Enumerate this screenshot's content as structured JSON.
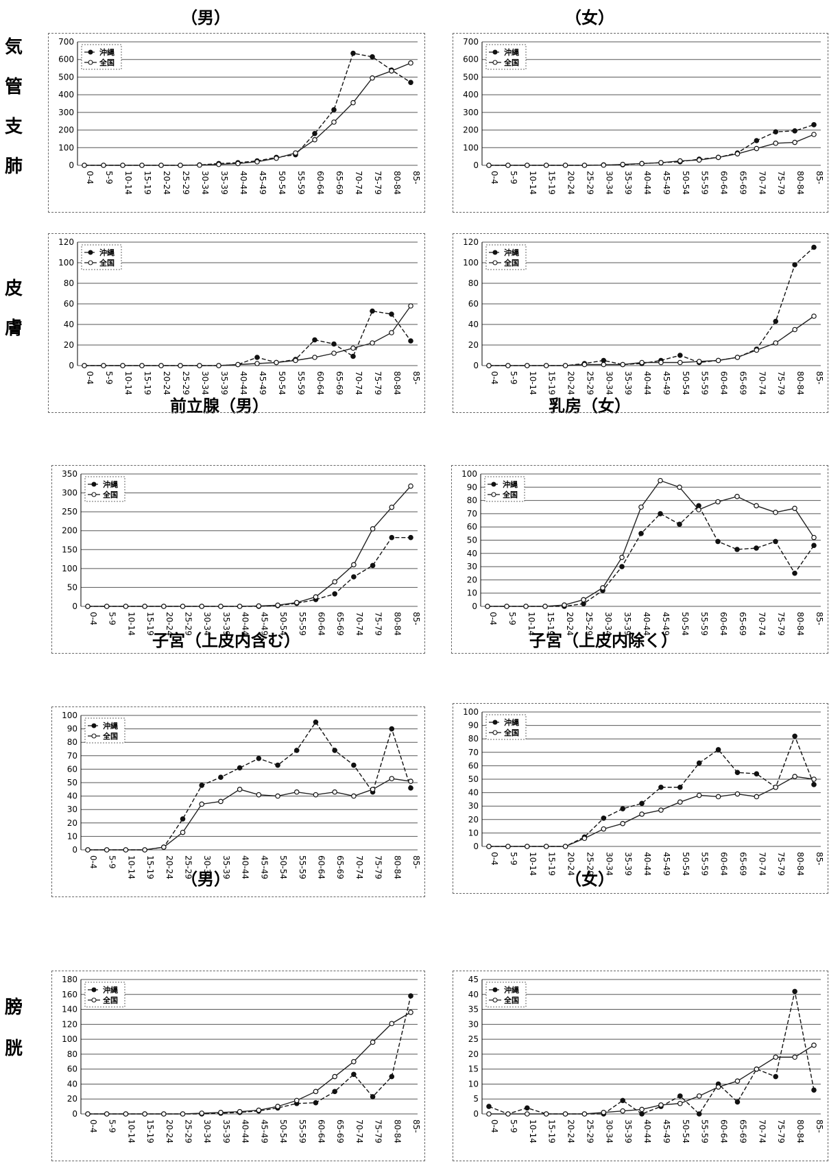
{
  "sections": {
    "row1": {
      "left_title": "（男）",
      "right_title": "（女）",
      "site_label": [
        "気",
        "管",
        "支",
        "肺"
      ]
    },
    "row2": {
      "site_label": [
        "皮",
        "膚"
      ]
    },
    "row3": {
      "left_title": "前立腺（男）",
      "right_title": "乳房（女）"
    },
    "row4": {
      "left_title": "子宮（上皮内含む）",
      "right_title": "子宮（上皮内除く）"
    },
    "row5": {
      "left_title": "（男）",
      "right_title": "（女）",
      "site_label": [
        "膀",
        "胱"
      ]
    }
  },
  "legend": {
    "okinawa": "沖縄",
    "national": "全国"
  },
  "colors": {
    "okinawa": "#111111",
    "national": "#222222",
    "grid": "#555555"
  },
  "chart_data": [
    {
      "id": "lung_male",
      "type": "line",
      "categories": [
        "0-4",
        "5-9",
        "10-14",
        "15-19",
        "20-24",
        "25-29",
        "30-34",
        "35-39",
        "40-44",
        "45-49",
        "50-54",
        "55-59",
        "60-64",
        "65-69",
        "70-74",
        "75-79",
        "80-84",
        "85-"
      ],
      "ylim": [
        0,
        700
      ],
      "yticks": [
        0,
        100,
        200,
        300,
        400,
        500,
        600,
        700
      ],
      "series": [
        {
          "name": "沖縄",
          "values": [
            0,
            0,
            0,
            0,
            0,
            0,
            2,
            10,
            15,
            25,
            45,
            60,
            180,
            315,
            635,
            615,
            540,
            470
          ]
        },
        {
          "name": "全国",
          "values": [
            0,
            0,
            0,
            0,
            0,
            0,
            1,
            5,
            10,
            20,
            40,
            70,
            145,
            245,
            355,
            495,
            535,
            580
          ]
        }
      ]
    },
    {
      "id": "lung_female",
      "type": "line",
      "categories": [
        "0-4",
        "5-9",
        "10-14",
        "15-19",
        "20-24",
        "25-29",
        "30-34",
        "35-39",
        "40-44",
        "45-49",
        "50-54",
        "55-59",
        "60-64",
        "65-69",
        "70-74",
        "75-79",
        "80-84",
        "85-"
      ],
      "ylim": [
        0,
        700
      ],
      "yticks": [
        0,
        100,
        200,
        300,
        400,
        500,
        600,
        700
      ],
      "series": [
        {
          "name": "沖縄",
          "values": [
            0,
            0,
            0,
            0,
            0,
            0,
            2,
            3,
            10,
            15,
            20,
            35,
            45,
            70,
            140,
            190,
            195,
            230
          ]
        },
        {
          "name": "全国",
          "values": [
            0,
            0,
            0,
            0,
            0,
            0,
            1,
            5,
            10,
            15,
            25,
            30,
            45,
            65,
            95,
            125,
            130,
            175
          ]
        }
      ]
    },
    {
      "id": "skin_male",
      "type": "line",
      "categories": [
        "0-4",
        "5-9",
        "10-14",
        "15-19",
        "20-24",
        "25-29",
        "30-34",
        "35-39",
        "40-44",
        "45-49",
        "50-54",
        "55-59",
        "60-64",
        "65-69",
        "70-74",
        "75-79",
        "80-84",
        "85-"
      ],
      "ylim": [
        0,
        120
      ],
      "yticks": [
        0,
        20,
        40,
        60,
        80,
        100,
        120
      ],
      "series": [
        {
          "name": "沖縄",
          "values": [
            0,
            0,
            0,
            0,
            0,
            0,
            0,
            0,
            1,
            8,
            3,
            6,
            25,
            21,
            9,
            53,
            50,
            24
          ]
        },
        {
          "name": "全国",
          "values": [
            0,
            0,
            0,
            0,
            0,
            0,
            0,
            0,
            1,
            2,
            3,
            5,
            8,
            12,
            17,
            22,
            32,
            58
          ]
        }
      ]
    },
    {
      "id": "skin_female",
      "type": "line",
      "categories": [
        "0-4",
        "5-9",
        "10-14",
        "15-19",
        "20-24",
        "25-29",
        "30-34",
        "35-39",
        "40-44",
        "45-49",
        "50-54",
        "55-59",
        "60-64",
        "65-69",
        "70-74",
        "75-79",
        "80-84",
        "85-"
      ],
      "ylim": [
        0,
        120
      ],
      "yticks": [
        0,
        20,
        40,
        60,
        80,
        100,
        120
      ],
      "series": [
        {
          "name": "沖縄",
          "values": [
            0,
            0,
            0,
            0,
            0,
            2,
            5,
            1,
            2,
            5,
            10,
            3,
            5,
            8,
            16,
            43,
            98,
            115
          ]
        },
        {
          "name": "全国",
          "values": [
            0,
            0,
            0,
            0,
            0,
            1,
            1,
            1,
            3,
            3,
            3,
            4,
            5,
            8,
            15,
            22,
            35,
            48
          ]
        }
      ]
    },
    {
      "id": "prostate",
      "type": "line",
      "categories": [
        "0-4",
        "5-9",
        "10-14",
        "15-19",
        "20-24",
        "25-29",
        "30-34",
        "35-39",
        "40-44",
        "45-49",
        "50-54",
        "55-59",
        "60-64",
        "65-69",
        "70-74",
        "75-79",
        "80-84",
        "85-"
      ],
      "ylim": [
        0,
        350
      ],
      "yticks": [
        0,
        50,
        100,
        150,
        200,
        250,
        300,
        350
      ],
      "series": [
        {
          "name": "沖縄",
          "values": [
            0,
            0,
            0,
            0,
            0,
            0,
            0,
            0,
            0,
            0,
            2,
            8,
            18,
            33,
            78,
            108,
            182,
            182
          ]
        },
        {
          "name": "全国",
          "values": [
            0,
            0,
            0,
            0,
            0,
            0,
            0,
            0,
            0,
            1,
            3,
            10,
            25,
            65,
            110,
            205,
            262,
            318
          ]
        }
      ]
    },
    {
      "id": "breast",
      "type": "line",
      "categories": [
        "0-4",
        "5-9",
        "10-14",
        "15-19",
        "20-24",
        "25-29",
        "30-34",
        "35-39",
        "40-44",
        "45-49",
        "50-54",
        "55-59",
        "60-64",
        "65-69",
        "70-74",
        "75-79",
        "80-84",
        "85-"
      ],
      "ylim": [
        0,
        100
      ],
      "yticks": [
        0,
        10,
        20,
        30,
        40,
        50,
        60,
        70,
        80,
        90,
        100
      ],
      "series": [
        {
          "name": "沖縄",
          "values": [
            0,
            0,
            0,
            0,
            0,
            2,
            12,
            30,
            55,
            70,
            62,
            76,
            49,
            43,
            44,
            49,
            25,
            46
          ]
        },
        {
          "name": "全国",
          "values": [
            0,
            0,
            0,
            0,
            1,
            5,
            14,
            37,
            75,
            95,
            90,
            73,
            79,
            83,
            76,
            71,
            74,
            52
          ]
        }
      ]
    },
    {
      "id": "uterus_incl",
      "type": "line",
      "categories": [
        "0-4",
        "5-9",
        "10-14",
        "15-19",
        "20-24",
        "25-29",
        "30-34",
        "35-39",
        "40-44",
        "45-49",
        "50-54",
        "55-59",
        "60-64",
        "65-69",
        "70-74",
        "75-79",
        "80-84",
        "85-"
      ],
      "ylim": [
        0,
        100
      ],
      "yticks": [
        0,
        10,
        20,
        30,
        40,
        50,
        60,
        70,
        80,
        90,
        100
      ],
      "series": [
        {
          "name": "沖縄",
          "values": [
            0,
            0,
            0,
            0,
            2,
            23,
            48,
            54,
            61,
            68,
            63,
            74,
            95,
            74,
            63,
            43,
            90,
            46
          ]
        },
        {
          "name": "全国",
          "values": [
            0,
            0,
            0,
            0,
            2,
            13,
            34,
            36,
            45,
            41,
            40,
            43,
            41,
            43,
            40,
            45,
            53,
            51
          ]
        }
      ]
    },
    {
      "id": "uterus_excl",
      "type": "line",
      "categories": [
        "0-4",
        "5-9",
        "10-14",
        "15-19",
        "20-24",
        "25-29",
        "30-34",
        "35-39",
        "40-44",
        "45-49",
        "50-54",
        "55-59",
        "60-64",
        "65-69",
        "70-74",
        "75-79",
        "80-84",
        "85-"
      ],
      "ylim": [
        0,
        100
      ],
      "yticks": [
        0,
        10,
        20,
        30,
        40,
        50,
        60,
        70,
        80,
        90,
        100
      ],
      "series": [
        {
          "name": "沖縄",
          "values": [
            0,
            0,
            0,
            0,
            0,
            7,
            21,
            28,
            32,
            44,
            44,
            62,
            72,
            55,
            54,
            44,
            82,
            46
          ]
        },
        {
          "name": "全国",
          "values": [
            0,
            0,
            0,
            0,
            0,
            6,
            13,
            17,
            24,
            27,
            33,
            38,
            37,
            39,
            37,
            44,
            52,
            50
          ]
        }
      ]
    },
    {
      "id": "bladder_male",
      "type": "line",
      "categories": [
        "0-4",
        "5-9",
        "10-14",
        "15-19",
        "20-24",
        "25-29",
        "30-34",
        "35-39",
        "40-44",
        "45-49",
        "50-54",
        "55-59",
        "60-64",
        "65-69",
        "70-74",
        "75-79",
        "80-84",
        "85-"
      ],
      "ylim": [
        0,
        180
      ],
      "yticks": [
        0,
        20,
        40,
        60,
        80,
        100,
        120,
        140,
        160,
        180
      ],
      "series": [
        {
          "name": "沖縄",
          "values": [
            0,
            0,
            0,
            0,
            0,
            0,
            0,
            1,
            2,
            4,
            8,
            14,
            15,
            30,
            53,
            23,
            50,
            158
          ]
        },
        {
          "name": "全国",
          "values": [
            0,
            0,
            0,
            0,
            0,
            0,
            1,
            2,
            3,
            5,
            10,
            18,
            30,
            50,
            70,
            96,
            121,
            136
          ]
        }
      ]
    },
    {
      "id": "bladder_female",
      "type": "line",
      "categories": [
        "0-4",
        "5-9",
        "10-14",
        "15-19",
        "20-24",
        "25-29",
        "30-34",
        "35-39",
        "40-44",
        "45-49",
        "50-54",
        "55-59",
        "60-64",
        "65-69",
        "70-74",
        "75-79",
        "80-84",
        "85-"
      ],
      "ylim": [
        0,
        45
      ],
      "yticks": [
        0,
        5,
        10,
        15,
        20,
        25,
        30,
        35,
        40,
        45
      ],
      "series": [
        {
          "name": "沖縄",
          "values": [
            2.5,
            0,
            2,
            0,
            0,
            0,
            0,
            4.5,
            0,
            2.5,
            6,
            0,
            10,
            4,
            15,
            12.5,
            41,
            8
          ]
        },
        {
          "name": "全国",
          "values": [
            0,
            0,
            0,
            0,
            0,
            0,
            0.5,
            1,
            1.5,
            3,
            3.5,
            6,
            9,
            11,
            15,
            19,
            19,
            23
          ]
        }
      ]
    }
  ]
}
